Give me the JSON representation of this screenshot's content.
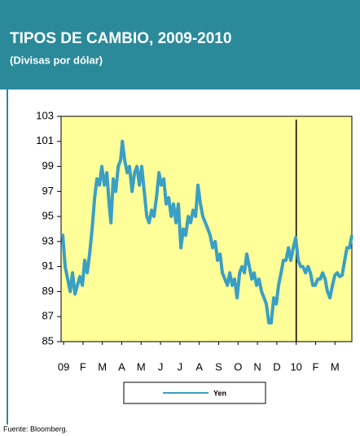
{
  "chart_data": {
    "type": "line",
    "title": "TIPOS DE CAMBIO, 2009-2010",
    "subtitle": "(Divisas por dólar)",
    "source": "Fuente: Bloomberg.",
    "x": [
      -0.13,
      -0.04,
      0.08,
      0.21,
      0.34,
      0.46,
      0.59,
      0.71,
      0.84,
      0.97,
      1.09,
      1.22,
      1.34,
      1.47,
      1.6,
      1.72,
      1.85,
      1.97,
      2.1,
      2.23,
      2.35,
      2.44,
      2.56,
      2.69,
      2.82,
      2.94,
      3.03,
      3.15,
      3.28,
      3.4,
      3.53,
      3.66,
      3.78,
      3.91,
      4.03,
      4.16,
      4.29,
      4.41,
      4.54,
      4.66,
      4.79,
      4.92,
      5.04,
      5.17,
      5.29,
      5.42,
      5.55,
      5.67,
      5.8,
      5.92,
      6.05,
      6.18,
      6.3,
      6.43,
      6.55,
      6.68,
      6.81,
      6.93,
      7.06,
      7.18,
      7.31,
      7.44,
      7.56,
      7.69,
      7.82,
      7.94,
      8.07,
      8.19,
      8.32,
      8.45,
      8.57,
      8.7,
      8.82,
      8.95,
      9.08,
      9.2,
      9.33,
      9.45,
      9.58,
      9.71,
      9.83,
      9.96,
      10.08,
      10.21,
      10.34,
      10.46,
      10.59,
      10.71,
      10.84,
      10.97,
      11.09,
      11.22,
      11.34,
      11.47,
      11.6,
      11.72,
      11.85,
      11.97,
      12.1,
      12.23,
      12.35,
      12.48,
      12.61,
      12.73,
      12.86,
      12.98,
      13.11,
      13.24,
      13.36,
      13.49,
      13.61,
      13.74,
      13.87,
      13.99,
      14.12,
      14.24,
      14.37,
      14.5,
      14.62,
      14.75,
      14.87
    ],
    "series": [
      {
        "name": "Yen",
        "color": "#3a9fc4",
        "values": [
          93.5,
          93.5,
          91,
          90,
          89,
          90.5,
          88.8,
          89.5,
          90.2,
          89.5,
          91.5,
          90.5,
          92,
          94,
          96.5,
          98,
          97.5,
          99,
          97.5,
          98.5,
          96,
          94.5,
          98,
          97,
          99,
          99.5,
          101,
          99.5,
          98.5,
          99,
          97,
          98.5,
          99,
          97.5,
          99,
          97,
          95,
          94.5,
          95.5,
          95,
          96.5,
          98.5,
          97.5,
          98,
          96,
          96.5,
          95,
          96,
          94.5,
          96,
          92.5,
          94,
          93.5,
          95,
          94.5,
          95.5,
          95,
          97.5,
          96,
          95,
          94.5,
          94,
          93.5,
          92.5,
          93,
          91.5,
          92,
          90.5,
          90,
          89.5,
          90.5,
          89.5,
          90,
          88.5,
          90.5,
          91,
          90.5,
          92,
          91,
          90,
          90.5,
          89.5,
          90,
          89,
          88.5,
          88,
          86.5,
          86.5,
          88.5,
          88,
          89.5,
          90.5,
          91.5,
          91.5,
          92.5,
          91.5,
          92.5,
          93.3,
          91.5,
          91,
          91,
          90.5,
          91,
          90.5,
          89.5,
          89.5,
          90,
          90,
          90.5,
          90,
          89,
          88.5,
          89.5,
          90.3,
          90.5,
          90.2,
          90.3,
          91.5,
          92.5,
          92.5,
          93.5
        ]
      }
    ],
    "xlim": [
      -0.13,
      14.87
    ],
    "xticks": [
      {
        "value": 0,
        "label": "09"
      },
      {
        "value": 1,
        "label": "F"
      },
      {
        "value": 2,
        "label": "M"
      },
      {
        "value": 3,
        "label": "A"
      },
      {
        "value": 4,
        "label": "M"
      },
      {
        "value": 5,
        "label": "J"
      },
      {
        "value": 6,
        "label": "J"
      },
      {
        "value": 7,
        "label": "A"
      },
      {
        "value": 8,
        "label": "S"
      },
      {
        "value": 9,
        "label": "O"
      },
      {
        "value": 10,
        "label": "N"
      },
      {
        "value": 11,
        "label": "D"
      },
      {
        "value": 12,
        "label": "10"
      },
      {
        "value": 13,
        "label": "F"
      },
      {
        "value": 14,
        "label": "M"
      }
    ],
    "ylim": [
      85,
      103
    ],
    "yticks": [
      85,
      87,
      89,
      91,
      93,
      95,
      97,
      99,
      101,
      103
    ],
    "vline": 12,
    "plot_color": "#ffff99",
    "header_color": "#2a8a9a"
  }
}
